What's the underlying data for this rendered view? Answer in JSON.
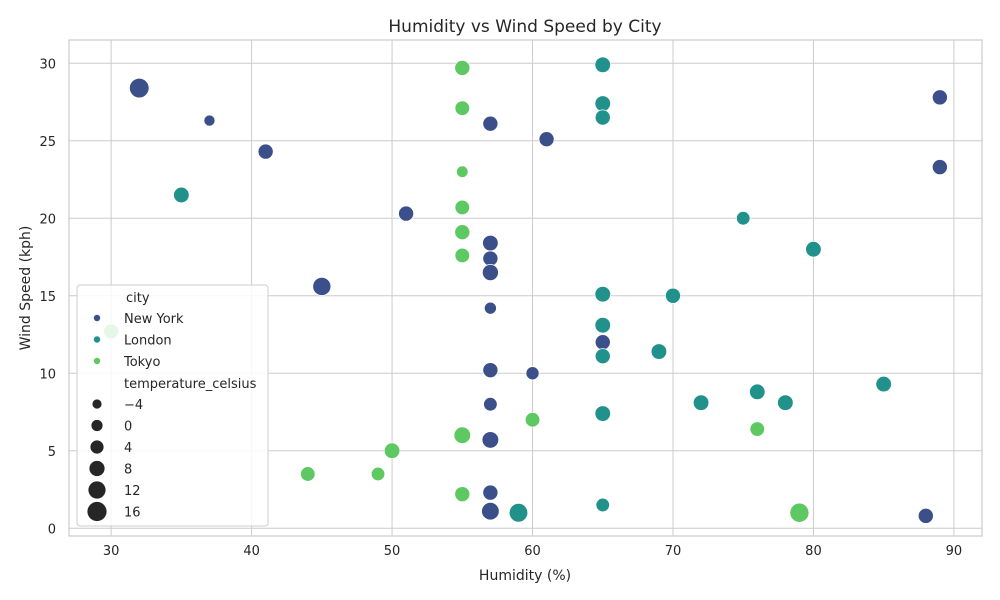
{
  "chart_data": {
    "type": "scatter",
    "title": "Humidity vs Wind Speed by City",
    "xlabel": "Humidity (%)",
    "ylabel": "Wind Speed (kph)",
    "xlim": [
      27,
      92
    ],
    "ylim": [
      -0.5,
      31.5
    ],
    "xticks": [
      30,
      40,
      50,
      60,
      70,
      80,
      90
    ],
    "yticks": [
      0,
      5,
      10,
      15,
      20,
      25,
      30
    ],
    "grid": true,
    "legend_position": "lower-left",
    "hue_title": "city",
    "size_title": "temperature_celsius",
    "size_legend": [
      {
        "label": "−4",
        "value": -4
      },
      {
        "label": "0",
        "value": 0
      },
      {
        "label": "4",
        "value": 4
      },
      {
        "label": "8",
        "value": 8
      },
      {
        "label": "12",
        "value": 12
      },
      {
        "label": "16",
        "value": 16
      }
    ],
    "series": [
      {
        "name": "New York",
        "color": "#3b4f8a",
        "points": [
          {
            "x": 32,
            "y": 28.4,
            "t": 17
          },
          {
            "x": 37,
            "y": 26.3,
            "t": 0
          },
          {
            "x": 41,
            "y": 24.3,
            "t": 8
          },
          {
            "x": 45,
            "y": 15.6,
            "t": 14
          },
          {
            "x": 51,
            "y": 20.3,
            "t": 8
          },
          {
            "x": 57,
            "y": 26.1,
            "t": 8
          },
          {
            "x": 57,
            "y": 18.4,
            "t": 9
          },
          {
            "x": 57,
            "y": 17.4,
            "t": 8
          },
          {
            "x": 57,
            "y": 16.5,
            "t": 10
          },
          {
            "x": 57,
            "y": 14.2,
            "t": 2
          },
          {
            "x": 57,
            "y": 10.2,
            "t": 8
          },
          {
            "x": 57,
            "y": 8.0,
            "t": 5
          },
          {
            "x": 57,
            "y": 5.7,
            "t": 11
          },
          {
            "x": 57,
            "y": 2.3,
            "t": 8
          },
          {
            "x": 57,
            "y": 1.1,
            "t": 13
          },
          {
            "x": 60,
            "y": 10.0,
            "t": 4
          },
          {
            "x": 61,
            "y": 25.1,
            "t": 8
          },
          {
            "x": 65,
            "y": 12.0,
            "t": 8
          },
          {
            "x": 88,
            "y": 0.8,
            "t": 8
          },
          {
            "x": 89,
            "y": 27.8,
            "t": 8
          },
          {
            "x": 89,
            "y": 23.3,
            "t": 8
          }
        ]
      },
      {
        "name": "London",
        "color": "#21918c",
        "points": [
          {
            "x": 35,
            "y": 21.5,
            "t": 9
          },
          {
            "x": 59,
            "y": 1.0,
            "t": 15
          },
          {
            "x": 65,
            "y": 29.9,
            "t": 9
          },
          {
            "x": 65,
            "y": 27.4,
            "t": 9
          },
          {
            "x": 65,
            "y": 26.5,
            "t": 8
          },
          {
            "x": 65,
            "y": 15.1,
            "t": 9
          },
          {
            "x": 65,
            "y": 13.1,
            "t": 9
          },
          {
            "x": 65,
            "y": 11.1,
            "t": 8
          },
          {
            "x": 65,
            "y": 7.4,
            "t": 9
          },
          {
            "x": 65,
            "y": 1.5,
            "t": 5
          },
          {
            "x": 69,
            "y": 11.4,
            "t": 9
          },
          {
            "x": 70,
            "y": 15.0,
            "t": 8
          },
          {
            "x": 72,
            "y": 8.1,
            "t": 9
          },
          {
            "x": 75,
            "y": 20.0,
            "t": 5
          },
          {
            "x": 76,
            "y": 8.8,
            "t": 9
          },
          {
            "x": 78,
            "y": 8.1,
            "t": 9
          },
          {
            "x": 80,
            "y": 18.0,
            "t": 9
          },
          {
            "x": 85,
            "y": 9.3,
            "t": 9
          }
        ]
      },
      {
        "name": "Tokyo",
        "color": "#5ec962",
        "points": [
          {
            "x": 30,
            "y": 12.7,
            "t": 8
          },
          {
            "x": 44,
            "y": 3.5,
            "t": 7
          },
          {
            "x": 49,
            "y": 3.5,
            "t": 5
          },
          {
            "x": 50,
            "y": 5.0,
            "t": 9
          },
          {
            "x": 55,
            "y": 29.7,
            "t": 8
          },
          {
            "x": 55,
            "y": 27.1,
            "t": 7
          },
          {
            "x": 55,
            "y": 23.0,
            "t": 1
          },
          {
            "x": 55,
            "y": 20.7,
            "t": 7
          },
          {
            "x": 55,
            "y": 19.1,
            "t": 8
          },
          {
            "x": 55,
            "y": 17.6,
            "t": 7
          },
          {
            "x": 55,
            "y": 6.0,
            "t": 11
          },
          {
            "x": 55,
            "y": 2.2,
            "t": 8
          },
          {
            "x": 60,
            "y": 7.0,
            "t": 7
          },
          {
            "x": 76,
            "y": 6.4,
            "t": 7
          },
          {
            "x": 79,
            "y": 1.0,
            "t": 16
          }
        ]
      }
    ]
  }
}
